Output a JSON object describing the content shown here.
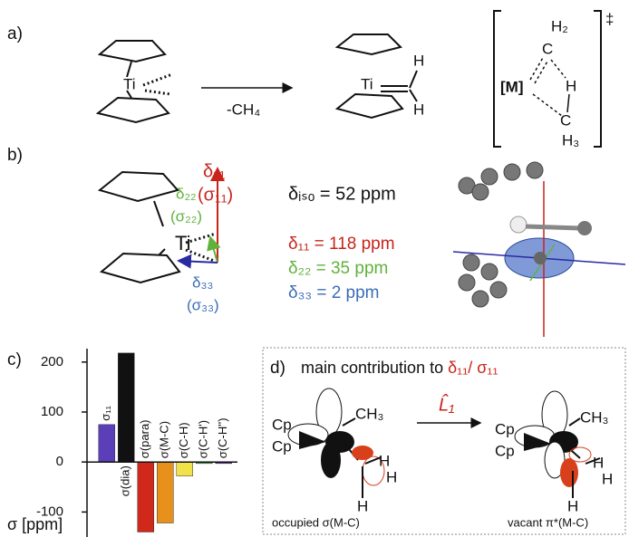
{
  "panel_a": {
    "label": "a)",
    "reagent_metal": "Ti",
    "arrow_label": "-CH₄",
    "product_metal": "Ti",
    "product_h1": "H",
    "product_h2": "H",
    "ts": {
      "metal": "[M]",
      "c_top": "C",
      "h2": "H₂",
      "h_mid": "H",
      "c_bottom": "C",
      "h3": "H₃",
      "dagger": "‡"
    }
  },
  "panel_b": {
    "label": "b)",
    "metal": "Ti",
    "d11": "δ₁₁",
    "s11": "(σ₁₁)",
    "d22": "δ₂₂",
    "s22": "(σ₂₂)",
    "d33": "δ₃₃",
    "s33": "(σ₃₃)",
    "iso": "δᵢₛₒ = 52 ppm",
    "v11": "δ₁₁ = 118 ppm",
    "v22": "δ₂₂ = 35 ppm",
    "v33": "δ₃₃ = 2 ppm"
  },
  "panel_c": {
    "label": "c)"
  },
  "chart_data": {
    "type": "bar",
    "ylabel": "σ [ppm]",
    "categories": [
      "σ₁₁",
      "σ(dia)",
      "σ(para)",
      "σ(M-C)",
      "σ(C-H)",
      "σ(C-H')",
      "σ(C-H'')"
    ],
    "values": [
      75,
      218,
      -140,
      -122,
      -28,
      -3,
      -3
    ],
    "colors": [
      "#5a3fb8",
      "#111111",
      "#d0281a",
      "#e8901c",
      "#f2e24a",
      "#3cb43c",
      "#6a1fa8"
    ],
    "ylim": [
      -150,
      225
    ],
    "yticks": [
      -100,
      0,
      100,
      200
    ]
  },
  "panel_d": {
    "label": "d)",
    "title": "main contribution to",
    "title_symbol": "δ₁₁/ σ₁₁",
    "operator": "L̂₁",
    "left": {
      "cp1": "Cp",
      "cp2": "Cp",
      "ch3": "CH₃",
      "h1": "H",
      "h2": "H",
      "h3": "H"
    },
    "right": {
      "cp1": "Cp",
      "cp2": "Cp",
      "ch3": "CH₃",
      "h1": "H",
      "h2": "H",
      "h3": "H"
    },
    "left_caption": "occupied σ(M-C)",
    "right_caption": "vacant π*(M-C)"
  }
}
